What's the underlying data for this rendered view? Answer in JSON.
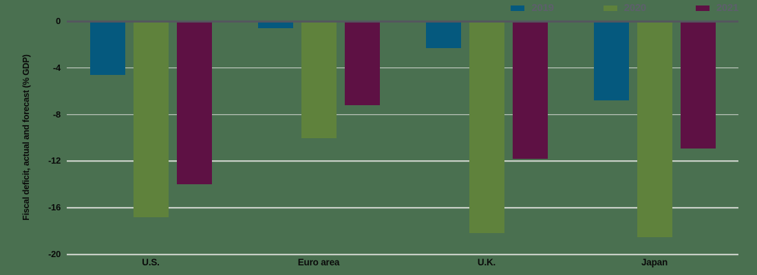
{
  "chart_data": {
    "type": "bar",
    "title": "",
    "ylabel": "Fiscal deficit, actual and forecast (% GDP)",
    "xlabel": "",
    "categories": [
      "U.S.",
      "Euro area",
      "U.K.",
      "Japan"
    ],
    "series": [
      {
        "name": "2019",
        "color": "#05597e",
        "values": [
          -4.6,
          -0.6,
          -2.3,
          -6.8
        ]
      },
      {
        "name": "2020",
        "color": "#5f823c",
        "values": [
          -16.8,
          -10.0,
          -18.2,
          -18.5
        ]
      },
      {
        "name": "2021",
        "color": "#5e1144",
        "values": [
          -14.0,
          -7.2,
          -11.8,
          -10.9
        ]
      }
    ],
    "ylim": [
      -20,
      0
    ],
    "yticks": [
      0,
      -4,
      -8,
      -12,
      -16,
      -20
    ],
    "grid": true,
    "legend_position": "top-right"
  },
  "colors": {
    "background": "#4a7050",
    "gridline": "#d7dbd5",
    "zero_line": "#54565e",
    "axis_text": "#0a0a0a",
    "legend_text": "#5d5f6b"
  }
}
